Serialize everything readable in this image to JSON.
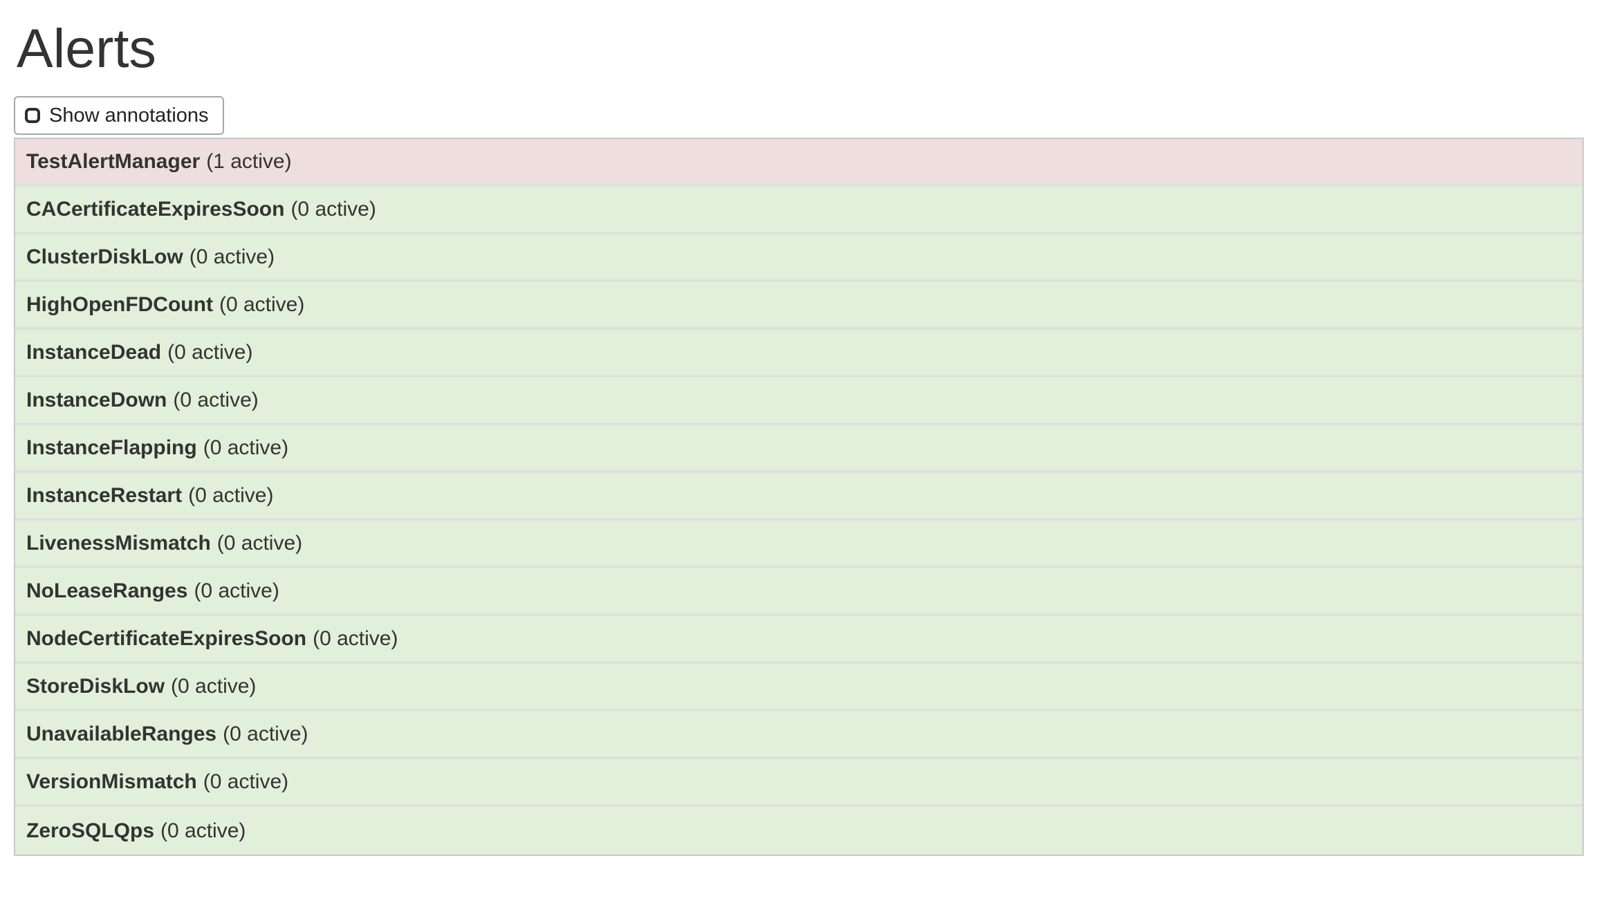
{
  "page": {
    "title": "Alerts"
  },
  "toolbar": {
    "show_annotations": {
      "label": "Show annotations",
      "checked": false
    }
  },
  "alerts": [
    {
      "name": "TestAlertManager",
      "count_label": "(1 active)",
      "active": 1,
      "state": "firing"
    },
    {
      "name": "CACertificateExpiresSoon",
      "count_label": "(0 active)",
      "active": 0,
      "state": "inactive"
    },
    {
      "name": "ClusterDiskLow",
      "count_label": "(0 active)",
      "active": 0,
      "state": "inactive"
    },
    {
      "name": "HighOpenFDCount",
      "count_label": "(0 active)",
      "active": 0,
      "state": "inactive"
    },
    {
      "name": "InstanceDead",
      "count_label": "(0 active)",
      "active": 0,
      "state": "inactive"
    },
    {
      "name": "InstanceDown",
      "count_label": "(0 active)",
      "active": 0,
      "state": "inactive"
    },
    {
      "name": "InstanceFlapping",
      "count_label": "(0 active)",
      "active": 0,
      "state": "inactive"
    },
    {
      "name": "InstanceRestart",
      "count_label": "(0 active)",
      "active": 0,
      "state": "inactive"
    },
    {
      "name": "LivenessMismatch",
      "count_label": "(0 active)",
      "active": 0,
      "state": "inactive"
    },
    {
      "name": "NoLeaseRanges",
      "count_label": "(0 active)",
      "active": 0,
      "state": "inactive"
    },
    {
      "name": "NodeCertificateExpiresSoon",
      "count_label": "(0 active)",
      "active": 0,
      "state": "inactive"
    },
    {
      "name": "StoreDiskLow",
      "count_label": "(0 active)",
      "active": 0,
      "state": "inactive"
    },
    {
      "name": "UnavailableRanges",
      "count_label": "(0 active)",
      "active": 0,
      "state": "inactive"
    },
    {
      "name": "VersionMismatch",
      "count_label": "(0 active)",
      "active": 0,
      "state": "inactive"
    },
    {
      "name": "ZeroSQLQps",
      "count_label": "(0 active)",
      "active": 0,
      "state": "inactive"
    }
  ],
  "colors": {
    "firing_bg": "#efdede",
    "inactive_bg": "#e2efda",
    "row_divider": "#dfe0de",
    "list_border": "#c9c9c9",
    "text": "#333333",
    "button_border": "#a7a7a7",
    "checkbox_border": "#2d2d2d"
  }
}
